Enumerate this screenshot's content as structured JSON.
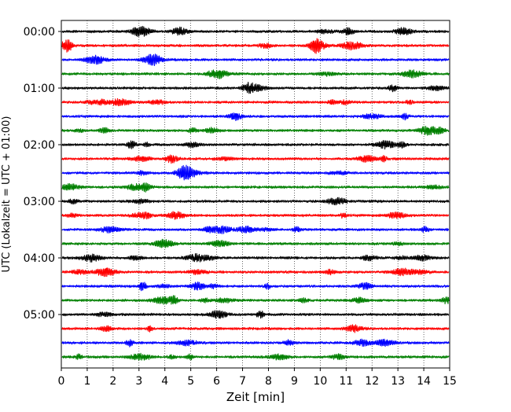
{
  "chart_data": {
    "type": "line",
    "xlabel": "Zeit  [min]",
    "ylabel": "UTC (Lokalzeit = UTC + 01:00)",
    "xlim": [
      0,
      15
    ],
    "x_ticks": [
      "0",
      "1",
      "2",
      "3",
      "4",
      "5",
      "6",
      "7",
      "8",
      "9",
      "10",
      "11",
      "12",
      "13",
      "14",
      "15"
    ],
    "x_grid": "dotted vertical lines at each minute",
    "y_ticks": [
      "00:00",
      "01:00",
      "02:00",
      "03:00",
      "04:00",
      "05:00"
    ],
    "traces_per_hour": 4,
    "trace_minutes": 15,
    "trace_colors": [
      "#000000",
      "#ff0000",
      "#0000ff",
      "#008000"
    ],
    "series": [
      {
        "start": "00:00",
        "color": "#000000"
      },
      {
        "start": "00:15",
        "color": "#ff0000"
      },
      {
        "start": "00:30",
        "color": "#0000ff"
      },
      {
        "start": "00:45",
        "color": "#008000"
      },
      {
        "start": "01:00",
        "color": "#000000"
      },
      {
        "start": "01:15",
        "color": "#ff0000"
      },
      {
        "start": "01:30",
        "color": "#0000ff"
      },
      {
        "start": "01:45",
        "color": "#008000"
      },
      {
        "start": "02:00",
        "color": "#000000"
      },
      {
        "start": "02:15",
        "color": "#ff0000"
      },
      {
        "start": "02:30",
        "color": "#0000ff"
      },
      {
        "start": "02:45",
        "color": "#008000"
      },
      {
        "start": "03:00",
        "color": "#000000"
      },
      {
        "start": "03:15",
        "color": "#ff0000"
      },
      {
        "start": "03:30",
        "color": "#0000ff"
      },
      {
        "start": "03:45",
        "color": "#008000"
      },
      {
        "start": "04:00",
        "color": "#000000"
      },
      {
        "start": "04:15",
        "color": "#ff0000"
      },
      {
        "start": "04:30",
        "color": "#0000ff"
      },
      {
        "start": "04:45",
        "color": "#008000"
      },
      {
        "start": "05:00",
        "color": "#000000"
      },
      {
        "start": "05:15",
        "color": "#ff0000"
      },
      {
        "start": "05:30",
        "color": "#0000ff"
      },
      {
        "start": "05:45",
        "color": "#008000"
      }
    ]
  }
}
